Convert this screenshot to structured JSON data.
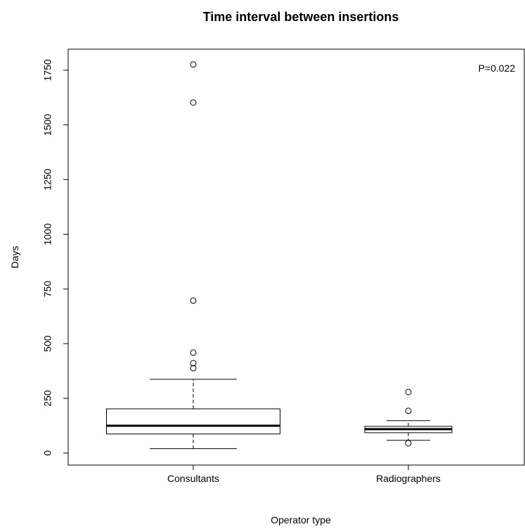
{
  "chart_data": {
    "type": "boxplot",
    "title": "Time interval between insertions",
    "x_label": "Operator type",
    "y_label": "Days",
    "annotation": "P=0.022",
    "categories": [
      "Consultants",
      "Radiographers"
    ],
    "boxes": [
      {
        "whisker_low": 20,
        "q1": 87,
        "median": 125,
        "q3": 202,
        "whisker_high": 337,
        "outliers": [
          388,
          411,
          459,
          697,
          1602,
          1776
        ]
      },
      {
        "whisker_low": 58,
        "q1": 93,
        "median": 109,
        "q3": 122,
        "whisker_high": 148,
        "outliers": [
          45,
          193,
          279
        ]
      }
    ],
    "ylim": [
      -55,
      1846
    ],
    "yticks": [
      0,
      250,
      500,
      750,
      1000,
      1250,
      1500,
      1750
    ],
    "grid": false
  }
}
